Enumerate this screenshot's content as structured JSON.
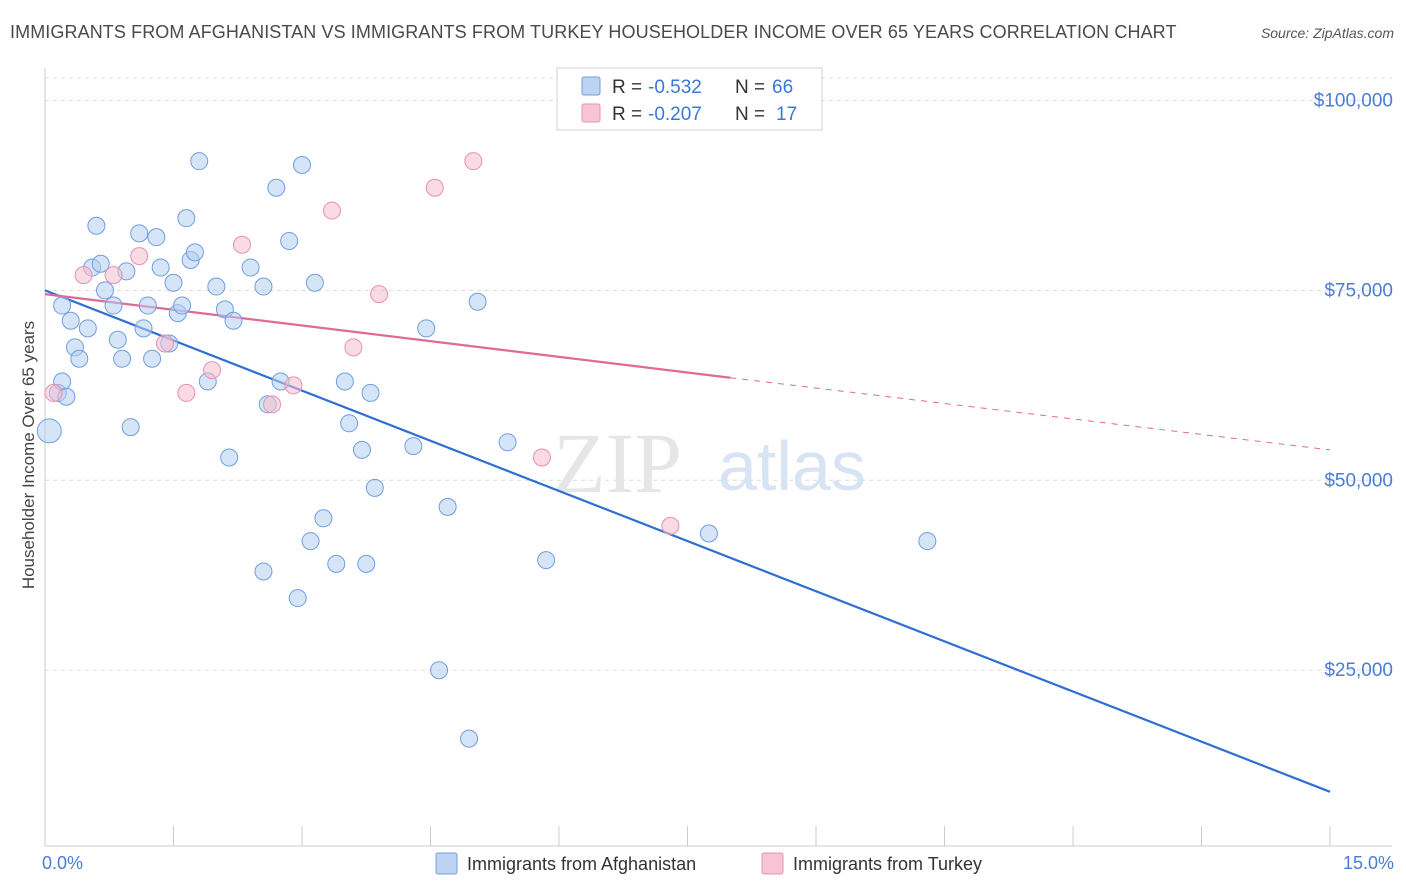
{
  "title": "IMMIGRANTS FROM AFGHANISTAN VS IMMIGRANTS FROM TURKEY HOUSEHOLDER INCOME OVER 65 YEARS CORRELATION CHART",
  "source": "Source: ZipAtlas.com",
  "watermark": {
    "zip": "ZIP",
    "atlas": "atlas"
  },
  "legend": {
    "rows": [
      {
        "r_label": "R =",
        "r_value": "-0.532",
        "n_label": "N =",
        "n_value": "66"
      },
      {
        "r_label": "R =",
        "r_value": "-0.207",
        "n_label": "N =",
        "n_value": "17"
      }
    ]
  },
  "colors": {
    "afghanistan": "#4a86d8",
    "turkey": "#e0709a",
    "afghanistan_fill": "#bcd3f2",
    "turkey_fill": "#f6c4d4",
    "axis_label": "#4a7cd6"
  },
  "chart_data": {
    "type": "scatter",
    "title": "IMMIGRANTS FROM AFGHANISTAN VS IMMIGRANTS FROM TURKEY HOUSEHOLDER INCOME OVER 65 YEARS CORRELATION CHART",
    "xlabel": "",
    "ylabel": "Householder Income Over 65 years",
    "xlim": [
      0,
      15
    ],
    "ylim": [
      2000,
      104000
    ],
    "x_tick_labels": [
      "0.0%",
      "15.0%"
    ],
    "y_ticks": [
      25000,
      50000,
      75000,
      100000
    ],
    "y_tick_labels": [
      "$25,000",
      "$50,000",
      "$75,000",
      "$100,000"
    ],
    "grid": true,
    "legend_position": "top-center",
    "series": [
      {
        "name": "Immigrants from Afghanistan",
        "points": [
          [
            0.05,
            56500
          ],
          [
            0.15,
            61500
          ],
          [
            0.2,
            63000
          ],
          [
            0.25,
            61000
          ],
          [
            0.2,
            73000
          ],
          [
            0.3,
            71000
          ],
          [
            0.35,
            67500
          ],
          [
            0.4,
            66000
          ],
          [
            0.5,
            70000
          ],
          [
            0.55,
            78000
          ],
          [
            0.6,
            83500
          ],
          [
            0.65,
            78500
          ],
          [
            0.7,
            75000
          ],
          [
            0.8,
            73000
          ],
          [
            0.85,
            68500
          ],
          [
            0.9,
            66000
          ],
          [
            0.95,
            77500
          ],
          [
            1.0,
            57000
          ],
          [
            1.1,
            82500
          ],
          [
            1.15,
            70000
          ],
          [
            1.2,
            73000
          ],
          [
            1.25,
            66000
          ],
          [
            1.3,
            82000
          ],
          [
            1.35,
            78000
          ],
          [
            1.45,
            68000
          ],
          [
            1.5,
            76000
          ],
          [
            1.55,
            72000
          ],
          [
            1.6,
            73000
          ],
          [
            1.65,
            84500
          ],
          [
            1.7,
            79000
          ],
          [
            1.75,
            80000
          ],
          [
            1.8,
            92000
          ],
          [
            1.9,
            63000
          ],
          [
            2.0,
            75500
          ],
          [
            2.1,
            72500
          ],
          [
            2.15,
            53000
          ],
          [
            2.2,
            71000
          ],
          [
            2.4,
            78000
          ],
          [
            2.55,
            75500
          ],
          [
            2.6,
            60000
          ],
          [
            2.7,
            88500
          ],
          [
            2.75,
            63000
          ],
          [
            2.55,
            38000
          ],
          [
            2.85,
            81500
          ],
          [
            2.95,
            34500
          ],
          [
            3.0,
            91500
          ],
          [
            3.1,
            42000
          ],
          [
            3.15,
            76000
          ],
          [
            3.25,
            45000
          ],
          [
            3.4,
            39000
          ],
          [
            3.5,
            63000
          ],
          [
            3.55,
            57500
          ],
          [
            3.7,
            54000
          ],
          [
            3.75,
            39000
          ],
          [
            3.8,
            61500
          ],
          [
            3.85,
            49000
          ],
          [
            4.3,
            54500
          ],
          [
            4.45,
            70000
          ],
          [
            4.6,
            25000
          ],
          [
            4.7,
            46500
          ],
          [
            4.95,
            16000
          ],
          [
            5.05,
            73500
          ],
          [
            5.4,
            55000
          ],
          [
            5.85,
            39500
          ],
          [
            7.75,
            43000
          ],
          [
            10.3,
            42000
          ]
        ]
      },
      {
        "name": "Immigrants from Turkey",
        "points": [
          [
            0.1,
            61500
          ],
          [
            0.45,
            77000
          ],
          [
            0.8,
            77000
          ],
          [
            1.1,
            79500
          ],
          [
            1.4,
            68000
          ],
          [
            1.65,
            61500
          ],
          [
            1.95,
            64500
          ],
          [
            2.3,
            81000
          ],
          [
            2.65,
            60000
          ],
          [
            2.9,
            62500
          ],
          [
            3.35,
            85500
          ],
          [
            3.6,
            67500
          ],
          [
            3.9,
            74500
          ],
          [
            4.55,
            88500
          ],
          [
            5.0,
            92000
          ],
          [
            5.8,
            53000
          ],
          [
            7.3,
            44000
          ]
        ]
      }
    ],
    "trend_lines": [
      {
        "series": "Immigrants from Afghanistan",
        "x": [
          0,
          15
        ],
        "y": [
          75000,
          9000
        ]
      },
      {
        "series": "Immigrants from Turkey",
        "x": [
          0,
          8
        ],
        "y": [
          74500,
          63500
        ]
      },
      {
        "series": "Immigrants from Turkey",
        "x": [
          8,
          15
        ],
        "y": [
          63500,
          54000
        ],
        "style": "dashed"
      }
    ]
  }
}
